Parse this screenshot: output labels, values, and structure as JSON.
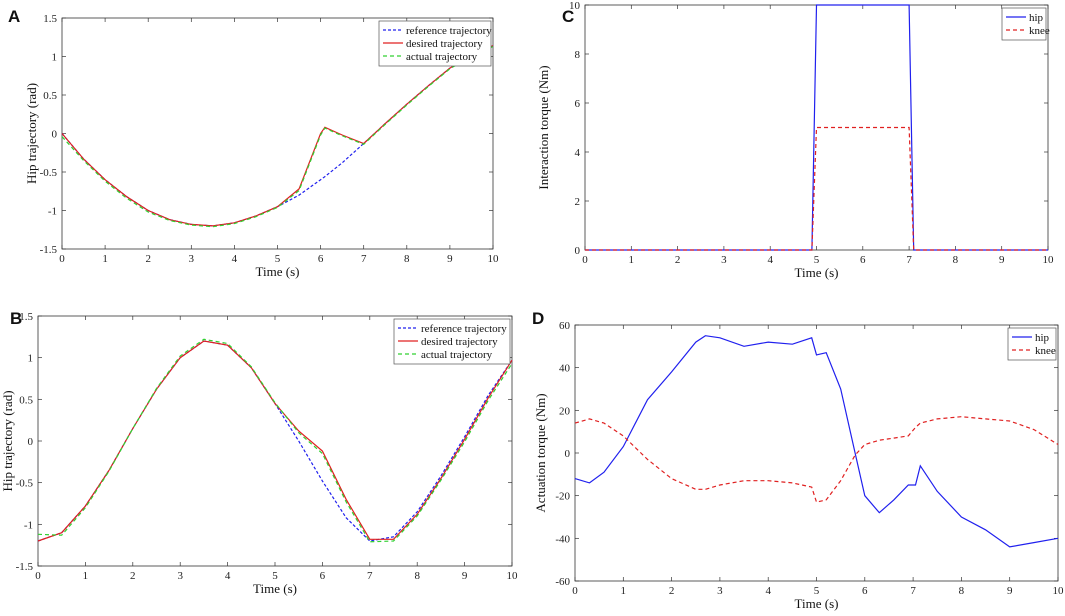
{
  "chart_data": [
    {
      "panel": "A",
      "type": "line",
      "xlabel": "Time (s)",
      "ylabel": "Hip trajectory (rad)",
      "xlim": [
        0,
        10
      ],
      "ylim": [
        -1.5,
        1.5
      ],
      "xticks": [
        "0",
        "1",
        "2",
        "3",
        "4",
        "5",
        "6",
        "7",
        "8",
        "9",
        "10"
      ],
      "yticks": [
        "-1.5",
        "-1",
        "-0.5",
        "0",
        "0.5",
        "1",
        "1.5"
      ],
      "legend": "top-right",
      "x": [
        0,
        0.5,
        1,
        1.5,
        2,
        2.5,
        3,
        3.5,
        4,
        4.5,
        5,
        5.5,
        6,
        6.1,
        6.5,
        7,
        7.5,
        8,
        8.5,
        9,
        9.5,
        10
      ],
      "series": [
        {
          "name": "reference trajectory",
          "color": "#2020ee",
          "dash": "3,2",
          "values": [
            0,
            -0.33,
            -0.6,
            -0.82,
            -1,
            -1.12,
            -1.18,
            -1.2,
            -1.16,
            -1.07,
            -0.95,
            -0.8,
            -0.6,
            -0.56,
            -0.38,
            -0.13,
            0.13,
            0.38,
            0.62,
            0.85,
            1.02,
            1.14
          ]
        },
        {
          "name": "desired trajectory",
          "color": "#e02020",
          "dash": "",
          "values": [
            0,
            -0.33,
            -0.6,
            -0.82,
            -1,
            -1.12,
            -1.18,
            -1.2,
            -1.16,
            -1.07,
            -0.95,
            -0.72,
            0.0,
            0.08,
            -0.02,
            -0.13,
            0.13,
            0.38,
            0.62,
            0.85,
            1.02,
            1.14
          ]
        },
        {
          "name": "actual trajectory",
          "color": "#30d030",
          "dash": "4,3",
          "values": [
            -0.04,
            -0.35,
            -0.62,
            -0.84,
            -1.02,
            -1.13,
            -1.19,
            -1.21,
            -1.17,
            -1.08,
            -0.96,
            -0.74,
            -0.02,
            0.07,
            -0.03,
            -0.14,
            0.12,
            0.37,
            0.61,
            0.84,
            1.01,
            1.13
          ]
        }
      ]
    },
    {
      "panel": "B",
      "type": "line",
      "xlabel": "Time (s)",
      "ylabel": "Hip trajectory (rad)",
      "xlim": [
        0,
        10
      ],
      "ylim": [
        -1.5,
        1.5
      ],
      "xticks": [
        "0",
        "1",
        "2",
        "3",
        "4",
        "5",
        "6",
        "7",
        "8",
        "9",
        "10"
      ],
      "yticks": [
        "-1.5",
        "-1",
        "-0.5",
        "0",
        "0.5",
        "1",
        "1.5"
      ],
      "legend": "top-right",
      "x": [
        0,
        0.5,
        1,
        1.5,
        2,
        2.5,
        3,
        3.5,
        4,
        4.5,
        5,
        5.5,
        6,
        6.5,
        7,
        7.5,
        8,
        8.5,
        9,
        9.5,
        10
      ],
      "series": [
        {
          "name": "reference trajectory",
          "color": "#2020ee",
          "dash": "3,2",
          "values": [
            -1.2,
            -1.1,
            -0.78,
            -0.35,
            0.15,
            0.62,
            1.0,
            1.2,
            1.15,
            0.88,
            0.45,
            0.0,
            -0.48,
            -0.92,
            -1.2,
            -1.15,
            -0.85,
            -0.42,
            0.05,
            0.55,
            0.97
          ]
        },
        {
          "name": "desired trajectory",
          "color": "#e02020",
          "dash": "",
          "values": [
            -1.2,
            -1.1,
            -0.78,
            -0.35,
            0.15,
            0.62,
            1.0,
            1.2,
            1.15,
            0.88,
            0.45,
            0.12,
            -0.12,
            -0.7,
            -1.18,
            -1.18,
            -0.88,
            -0.45,
            0.02,
            0.52,
            0.97
          ]
        },
        {
          "name": "actual trajectory",
          "color": "#30d030",
          "dash": "4,3",
          "values": [
            -1.12,
            -1.13,
            -0.8,
            -0.36,
            0.15,
            0.63,
            1.02,
            1.22,
            1.17,
            0.89,
            0.46,
            0.1,
            -0.15,
            -0.73,
            -1.21,
            -1.2,
            -0.9,
            -0.47,
            -0.01,
            0.49,
            0.93
          ]
        }
      ]
    },
    {
      "panel": "C",
      "type": "line",
      "xlabel": "Time (s)",
      "ylabel": "Interaction torque (Nm)",
      "xlim": [
        0,
        10
      ],
      "ylim": [
        0,
        10
      ],
      "xticks": [
        "0",
        "1",
        "2",
        "3",
        "4",
        "5",
        "6",
        "7",
        "8",
        "9",
        "10"
      ],
      "yticks": [
        "0",
        "2",
        "4",
        "6",
        "8",
        "10"
      ],
      "legend": "top-right",
      "series": [
        {
          "name": "hip",
          "color": "#2020ee",
          "dash": "",
          "x": [
            0,
            4.9,
            5.0,
            7.0,
            7.1,
            10
          ],
          "values": [
            0,
            0,
            10,
            10,
            0,
            0
          ]
        },
        {
          "name": "knee",
          "color": "#e02020",
          "dash": "4,3",
          "x": [
            0,
            4.9,
            5.0,
            7.0,
            7.1,
            10
          ],
          "values": [
            0,
            0,
            5,
            5,
            0,
            0
          ]
        }
      ]
    },
    {
      "panel": "D",
      "type": "line",
      "xlabel": "Time (s)",
      "ylabel": "Actuation torque (Nm)",
      "xlim": [
        0,
        10
      ],
      "ylim": [
        -60,
        60
      ],
      "xticks": [
        "0",
        "1",
        "2",
        "3",
        "4",
        "5",
        "6",
        "7",
        "8",
        "9",
        "10"
      ],
      "yticks": [
        "-60",
        "-40",
        "-20",
        "0",
        "20",
        "40",
        "60"
      ],
      "legend": "top-right",
      "series": [
        {
          "name": "hip",
          "color": "#2020ee",
          "dash": "",
          "x": [
            0,
            0.3,
            0.6,
            1,
            1.5,
            2,
            2.5,
            2.7,
            3,
            3.5,
            4,
            4.5,
            4.9,
            5,
            5.2,
            5.5,
            5.8,
            6,
            6.3,
            6.6,
            6.9,
            7.05,
            7.15,
            7.5,
            8,
            8.5,
            9,
            9.5,
            10
          ],
          "values": [
            -12,
            -14,
            -9,
            3,
            25,
            38,
            52,
            55,
            54,
            50,
            52,
            51,
            54,
            46,
            47,
            30,
            0,
            -20,
            -28,
            -22,
            -15,
            -15,
            -6,
            -18,
            -30,
            -36,
            -44,
            -42,
            -40
          ]
        },
        {
          "name": "knee",
          "color": "#e02020",
          "dash": "4,3",
          "x": [
            0,
            0.3,
            0.6,
            1,
            1.5,
            2,
            2.5,
            2.7,
            3,
            3.5,
            4,
            4.5,
            4.9,
            5,
            5.2,
            5.5,
            5.8,
            6,
            6.3,
            6.6,
            6.9,
            7.05,
            7.15,
            7.5,
            8,
            8.5,
            9,
            9.5,
            10
          ],
          "values": [
            14,
            16,
            14,
            8,
            -3,
            -12,
            -17,
            -17,
            -15,
            -13,
            -13,
            -14,
            -16,
            -23,
            -22,
            -13,
            -1,
            4,
            6,
            7,
            8,
            12,
            14,
            16,
            17,
            16,
            15,
            11,
            4
          ]
        }
      ]
    }
  ]
}
